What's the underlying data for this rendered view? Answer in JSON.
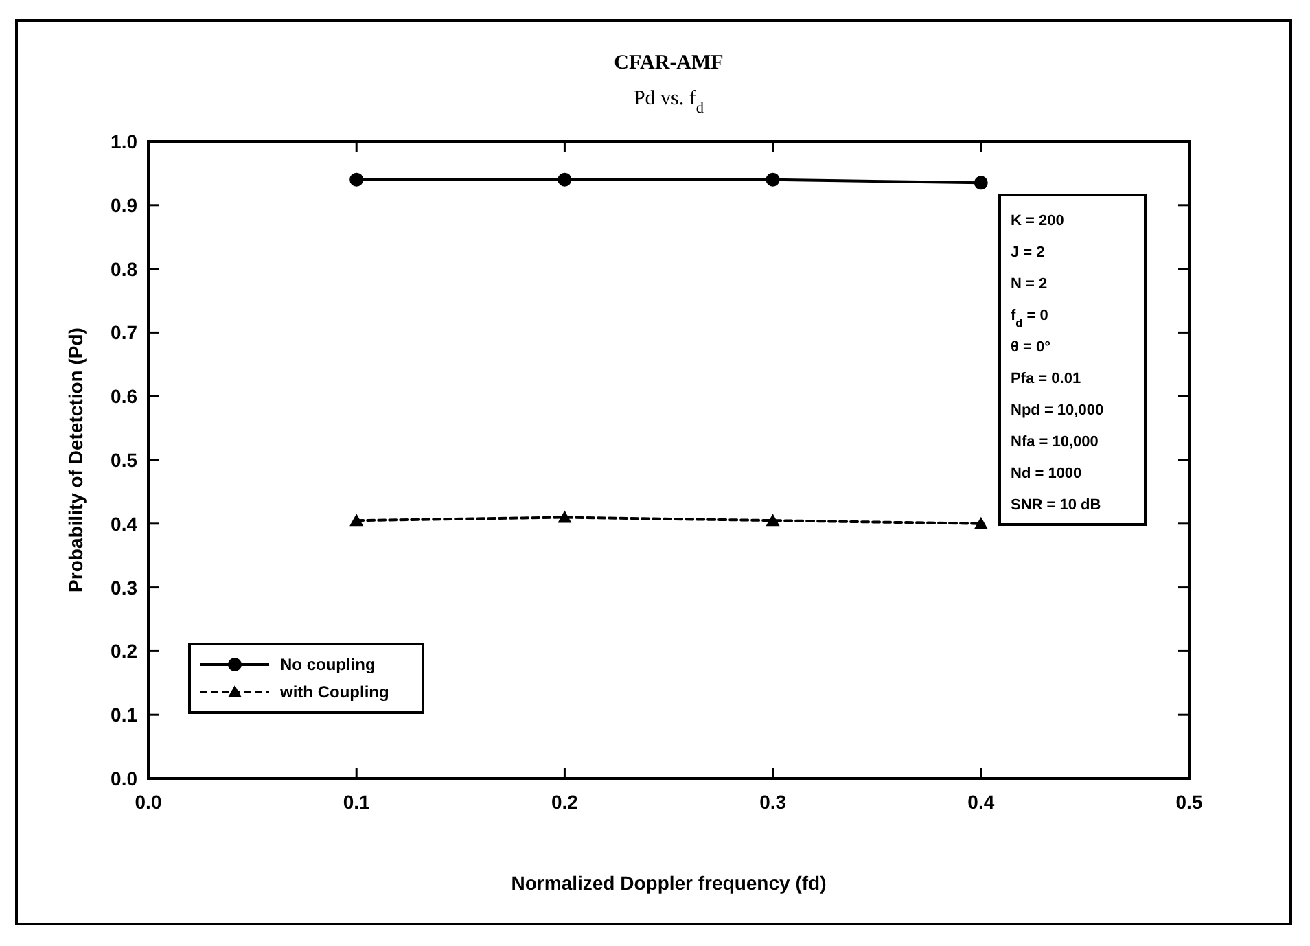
{
  "chart_data": {
    "type": "line",
    "title": "CFAR-AMF",
    "subtitle": "Pd vs. f$_{d}$",
    "xlabel": "Normalized Doppler frequency (fd)",
    "ylabel": "Probability of Detetction (Pd)",
    "x": [
      0.1,
      0.2,
      0.3,
      0.4
    ],
    "series": [
      {
        "name": "No coupling",
        "color": "#000000",
        "values": [
          0.94,
          0.94,
          0.94,
          0.935
        ],
        "marker": "circle",
        "line_style": "solid"
      },
      {
        "name": "with Coupling",
        "color": "#000000",
        "values": [
          0.405,
          0.41,
          0.405,
          0.4
        ],
        "marker": "triangle",
        "line_style": "dashed"
      }
    ],
    "xlim": [
      0,
      0.5
    ],
    "xticks": [
      {
        "value": 0,
        "label": "0.0"
      },
      0.1,
      0.2,
      0.3,
      0.4,
      0.5
    ],
    "ylim": [
      0,
      1
    ],
    "yticks": [
      {
        "value": 0,
        "label": "0.0"
      },
      0.1,
      0.2,
      0.3,
      0.4,
      0.5,
      0.6,
      0.7,
      0.8,
      0.9,
      {
        "value": 1,
        "label": "1.0"
      }
    ],
    "grid": false,
    "legend": "bottom left",
    "annotations": [
      "K = 200",
      "J = 2",
      "N = 2",
      "f$_{d}$ = 0",
      "θ = 0°",
      "Pfa = 0.01",
      "Npd = 10,000",
      "Nfa = 10,000",
      "Nd = 1000",
      "SNR = 10 dB"
    ]
  }
}
